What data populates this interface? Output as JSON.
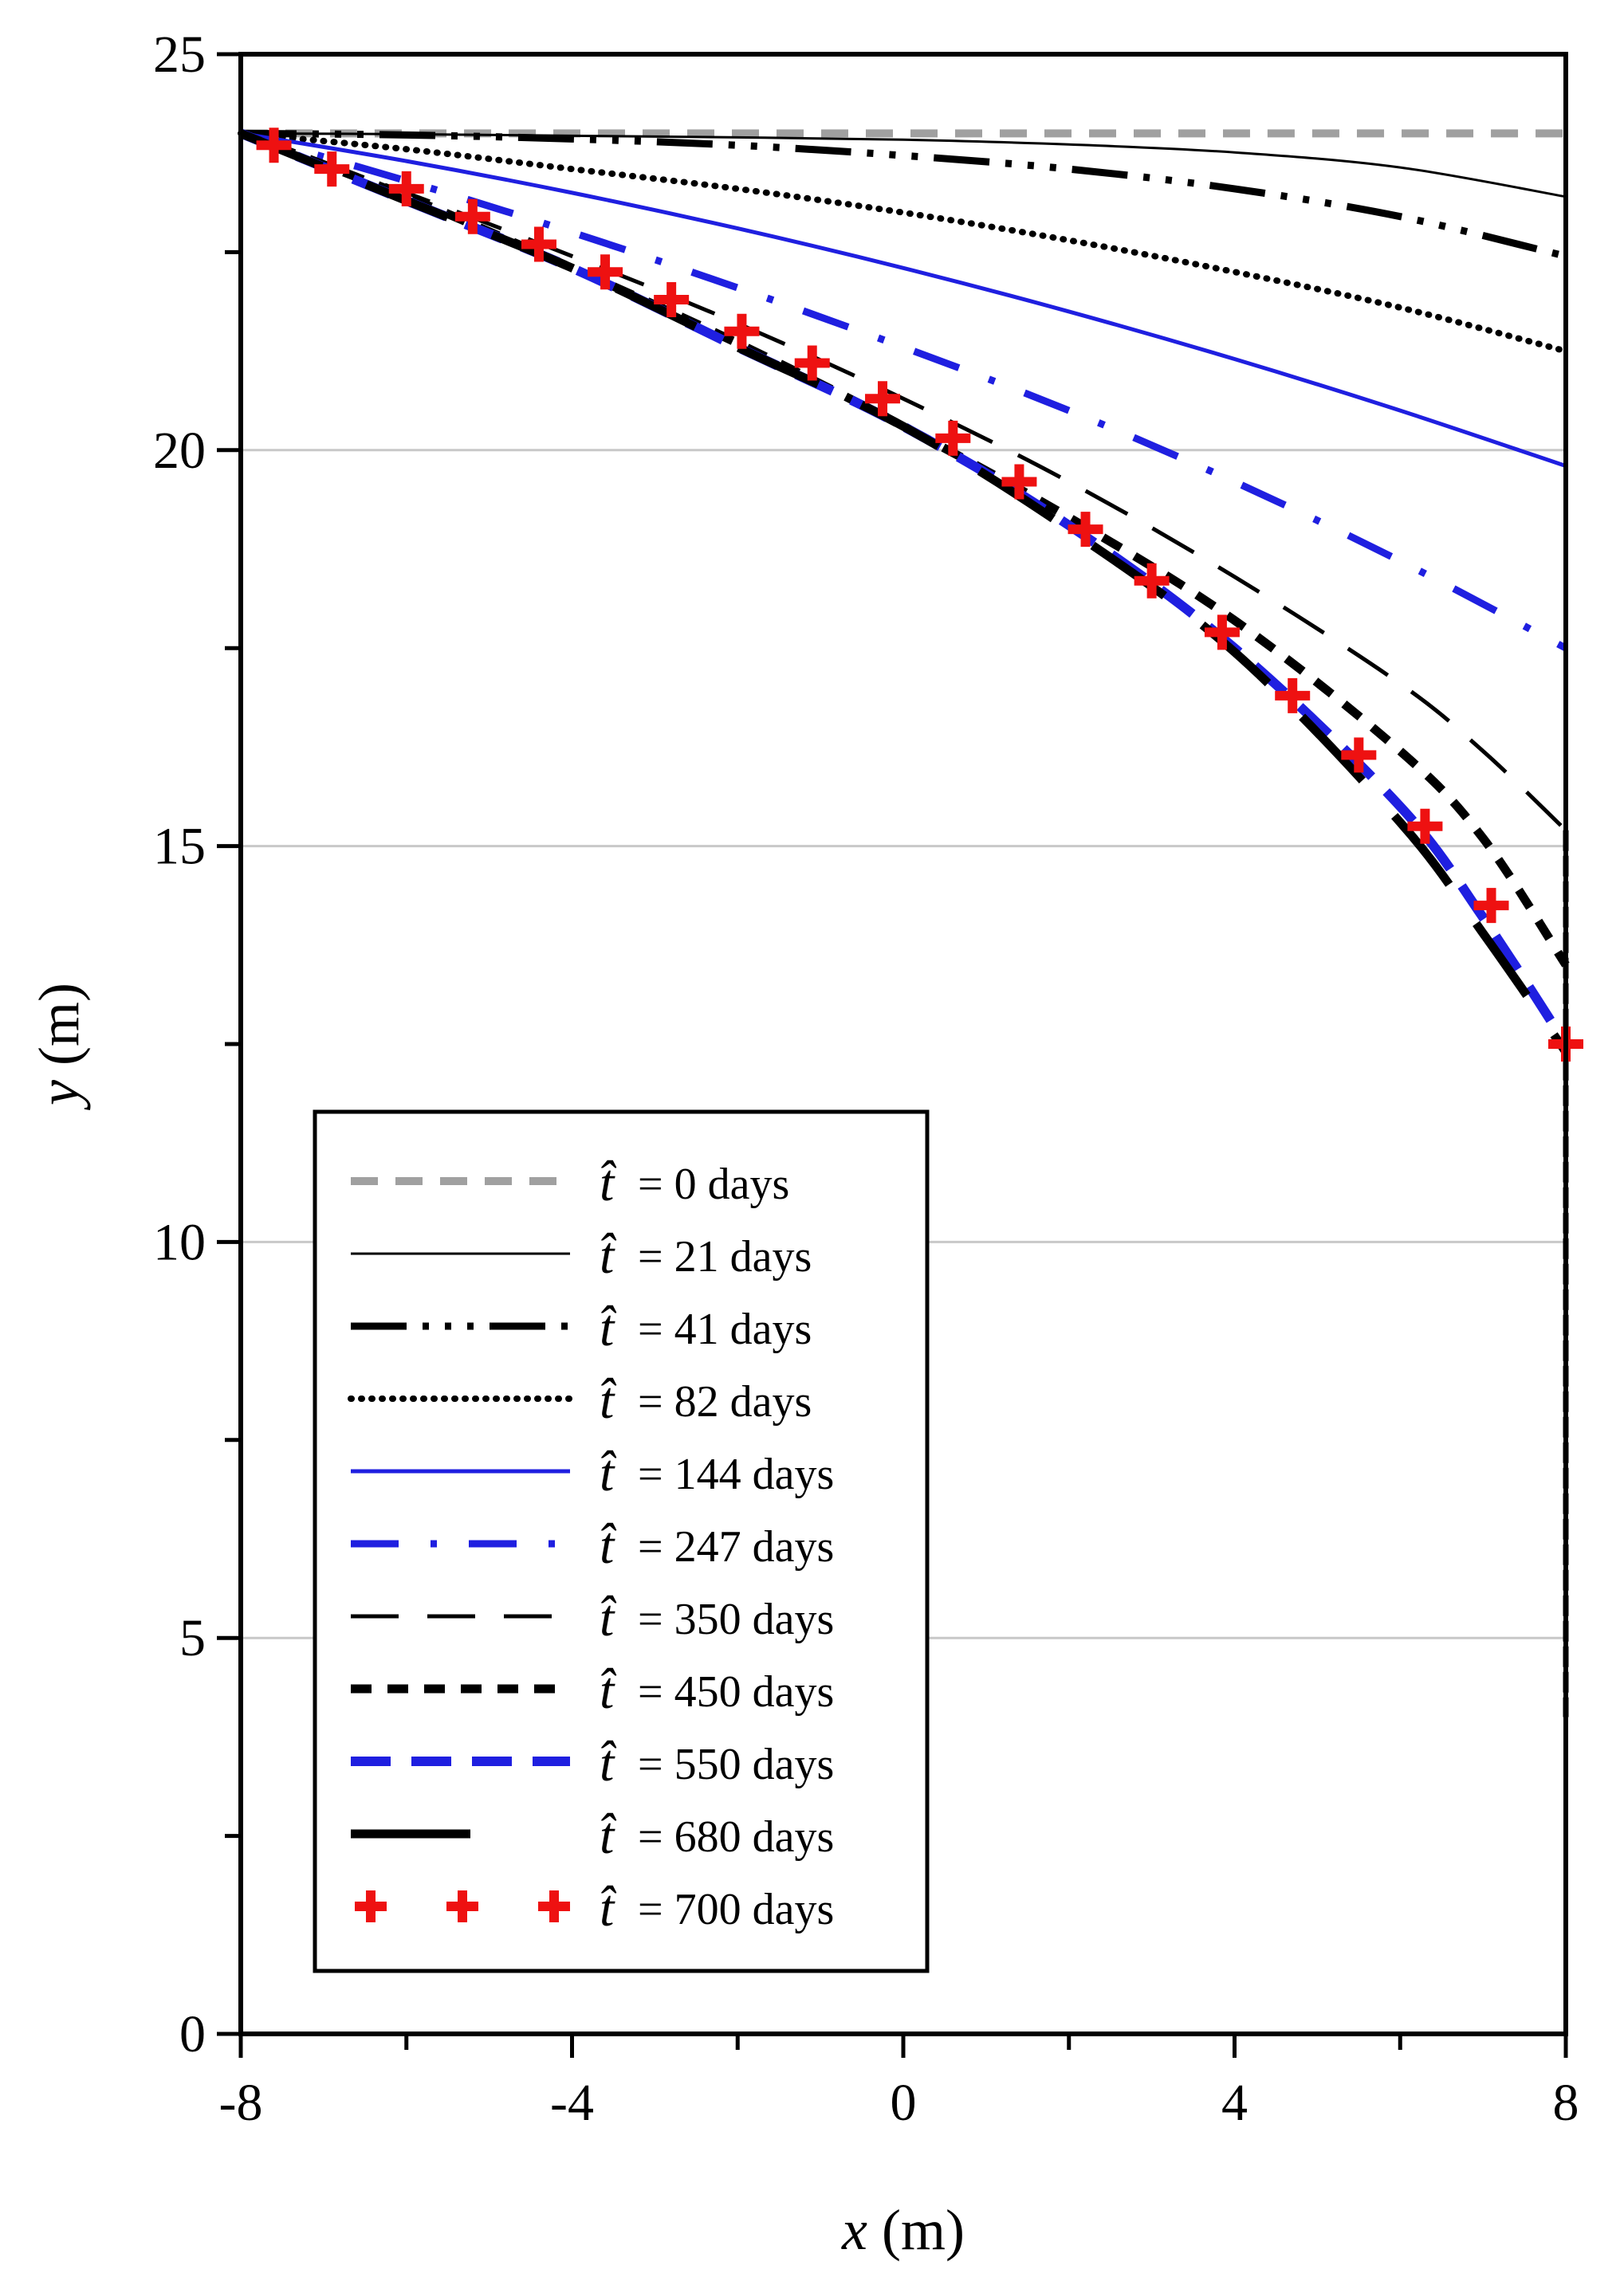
{
  "chart_data": {
    "type": "line",
    "title": "",
    "xlabel": {
      "var": "x",
      "unit": " (m)"
    },
    "ylabel": {
      "var": "y",
      "unit": " (m)"
    },
    "xlim": [
      -8,
      8
    ],
    "ylim": [
      0,
      25
    ],
    "xticks": [
      -8,
      -4,
      0,
      4,
      8
    ],
    "yticks": [
      0,
      5,
      10,
      15,
      20,
      25
    ],
    "grid": "horizontal",
    "legend_position": "bottom-left",
    "legend_symbol": "t̂",
    "series": [
      {
        "name": "= 0 days",
        "style": "dash",
        "color": "#a0a0a0",
        "x": [
          -8,
          -4,
          0,
          4,
          8
        ],
        "y": [
          24.0,
          24.0,
          24.0,
          24.0,
          24.0
        ]
      },
      {
        "name": "= 21 days",
        "style": "thin",
        "color": "#000000",
        "x": [
          -8,
          -6,
          -4,
          -2,
          0,
          2,
          4,
          6,
          8
        ],
        "y": [
          24.0,
          23.99,
          23.97,
          23.95,
          23.92,
          23.86,
          23.76,
          23.57,
          23.2
        ]
      },
      {
        "name": "= 41 days",
        "style": "dashdotdot",
        "color": "#000000",
        "x": [
          -8,
          -6,
          -4,
          -2,
          0,
          2,
          4,
          6,
          8
        ],
        "y": [
          24.0,
          23.98,
          23.93,
          23.85,
          23.72,
          23.55,
          23.3,
          22.95,
          22.45
        ]
      },
      {
        "name": "= 82 days",
        "style": "dotted",
        "color": "#000000",
        "x": [
          -8,
          -6,
          -4,
          -2,
          0,
          2,
          4,
          6,
          8
        ],
        "y": [
          24.0,
          23.8,
          23.55,
          23.3,
          23.0,
          22.65,
          22.25,
          21.8,
          21.25
        ]
      },
      {
        "name": "= 144 days",
        "style": "solid",
        "color": "#1f1fe0",
        "x": [
          -8,
          -6,
          -4,
          -2,
          0,
          2,
          4,
          6,
          8
        ],
        "y": [
          24.0,
          23.65,
          23.25,
          22.8,
          22.3,
          21.75,
          21.15,
          20.5,
          19.8
        ]
      },
      {
        "name": "= 247 days",
        "style": "dashdot",
        "color": "#1f1fe0",
        "x": [
          -8,
          -6,
          -4,
          -2,
          0,
          2,
          4,
          6,
          8
        ],
        "y": [
          24.0,
          23.4,
          22.75,
          22.05,
          21.3,
          20.5,
          19.6,
          18.6,
          17.5
        ]
      },
      {
        "name": "= 350 days",
        "style": "longdash",
        "color": "#000000",
        "x": [
          -8,
          -6,
          -4,
          -2,
          0,
          2,
          4,
          6,
          7,
          8
        ],
        "y": [
          24.0,
          23.25,
          22.45,
          21.6,
          20.65,
          19.6,
          18.4,
          17.05,
          16.2,
          15.2
        ]
      },
      {
        "name": "= 450 days",
        "style": "shortdash",
        "color": "#000000",
        "x": [
          -8,
          -6,
          -4,
          -2,
          0,
          2,
          4,
          6,
          7,
          8
        ],
        "y": [
          24.0,
          23.2,
          22.3,
          21.35,
          20.3,
          19.15,
          17.85,
          16.2,
          15.1,
          13.5
        ]
      },
      {
        "name": "= 550 days",
        "style": "bluedash",
        "color": "#1f1fe0",
        "x": [
          -8,
          -6,
          -4,
          -2,
          0,
          2,
          4,
          6,
          7,
          8
        ],
        "y": [
          24.0,
          23.15,
          22.3,
          21.3,
          20.3,
          19.05,
          17.5,
          15.5,
          14.1,
          12.5
        ]
      },
      {
        "name": "= 680 days",
        "style": "thickdash",
        "color": "#000000",
        "x": [
          -8,
          -6,
          -4,
          -2,
          0,
          2,
          4,
          6,
          7,
          8
        ],
        "y": [
          24.0,
          23.15,
          22.3,
          21.3,
          20.3,
          19.0,
          17.45,
          15.3,
          13.9,
          12.4
        ]
      },
      {
        "name": "= 700 days",
        "style": "plus",
        "color": "#ee1111",
        "x": [
          -7.6,
          -6.9,
          -6.0,
          -5.2,
          -4.4,
          -3.6,
          -2.8,
          -1.95,
          -1.1,
          -0.25,
          0.6,
          1.4,
          2.2,
          3.0,
          3.85,
          4.7,
          5.5,
          6.3,
          7.1,
          8.0
        ],
        "y": [
          23.85,
          23.55,
          23.3,
          22.95,
          22.6,
          22.25,
          21.9,
          21.5,
          21.1,
          20.65,
          20.15,
          19.6,
          19.0,
          18.35,
          17.7,
          16.9,
          16.15,
          15.25,
          14.25,
          12.5
        ]
      }
    ]
  }
}
